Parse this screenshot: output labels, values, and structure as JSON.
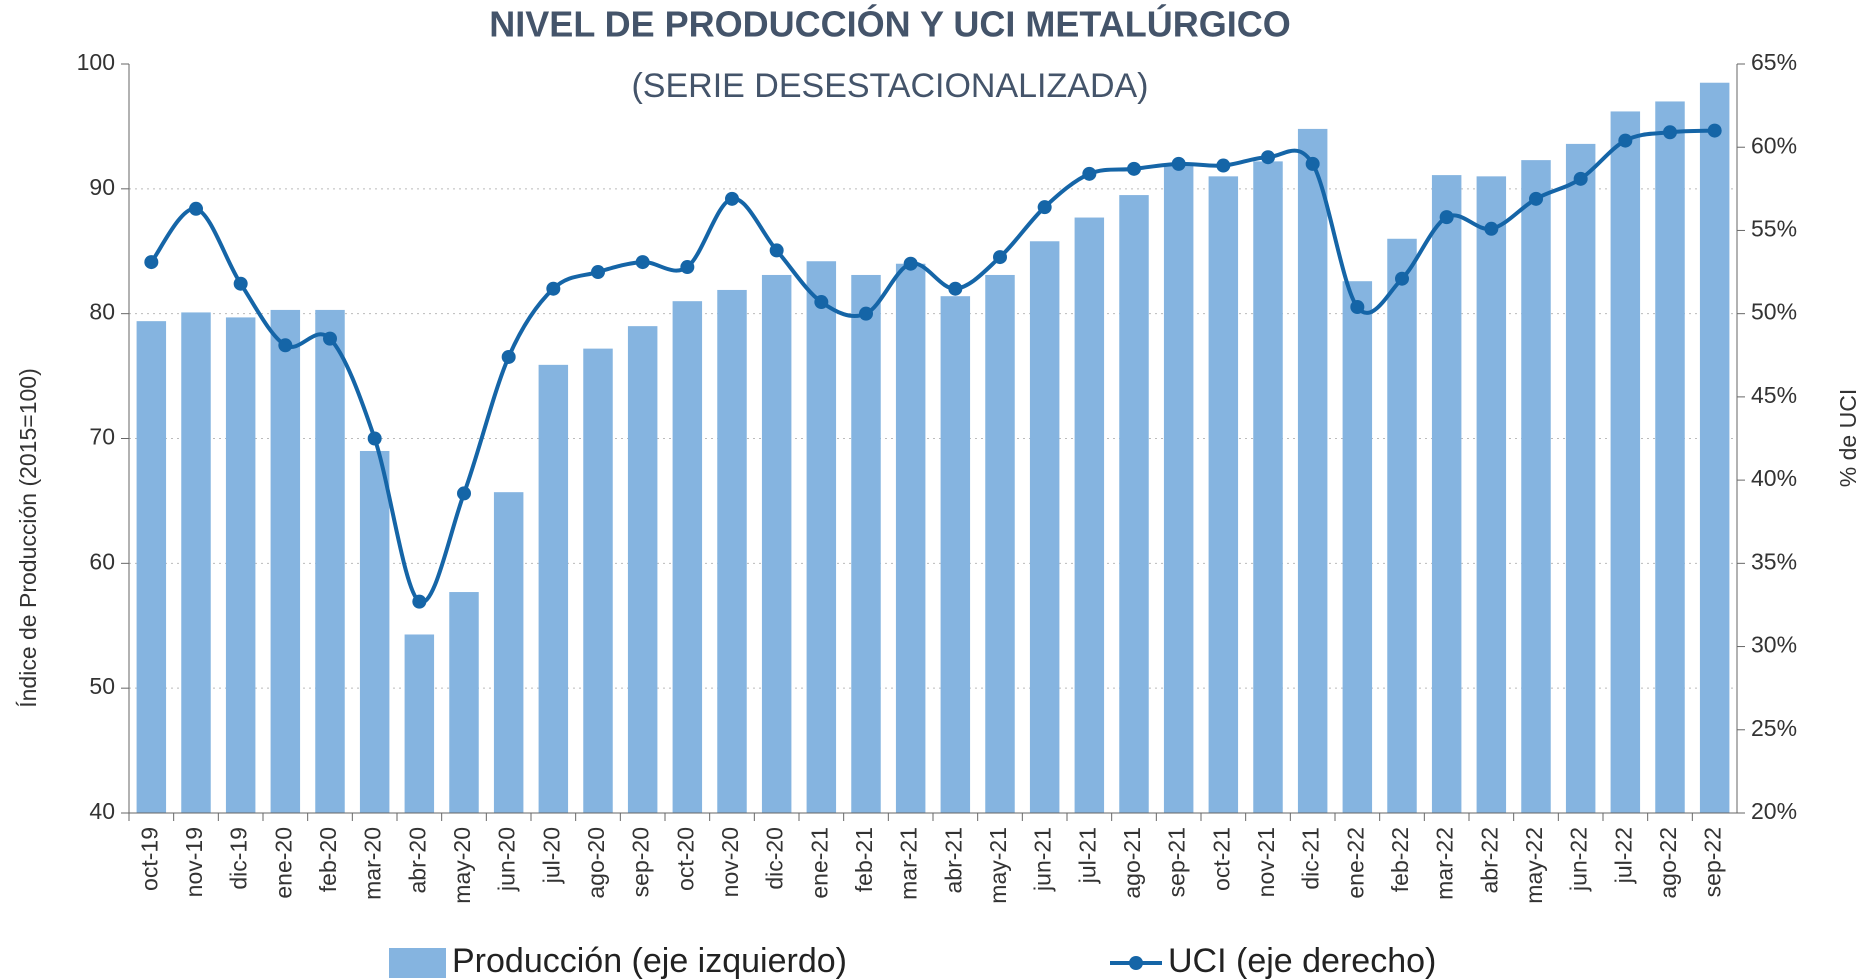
{
  "chart_data": {
    "type": "bar-line",
    "title": "NIVEL DE PRODUCCIÓN Y UCI METALÚRGICO",
    "subtitle": "(SERIE DESESTACIONALIZADA)",
    "y_label": "Índice de Producción (2015=100)",
    "y2_label": "% de UCI",
    "grid": true,
    "categories": [
      "oct-19",
      "nov-19",
      "dic-19",
      "ene-20",
      "feb-20",
      "mar-20",
      "abr-20",
      "may-20",
      "jun-20",
      "jul-20",
      "ago-20",
      "sep-20",
      "oct-20",
      "nov-20",
      "dic-20",
      "ene-21",
      "feb-21",
      "mar-21",
      "abr-21",
      "may-21",
      "jun-21",
      "jul-21",
      "ago-21",
      "sep-21",
      "oct-21",
      "nov-21",
      "dic-21",
      "ene-22",
      "feb-22",
      "mar-22",
      "abr-22",
      "may-22",
      "jun-22",
      "jul-22",
      "ago-22",
      "sep-22"
    ],
    "series": [
      {
        "name": "Producción (eje izquierdo)",
        "color": "#85b4e0",
        "type": "bar",
        "values": [
          79.4,
          80.1,
          79.7,
          80.3,
          80.3,
          69.0,
          54.3,
          57.7,
          65.7,
          75.9,
          77.2,
          79.0,
          81.0,
          81.9,
          83.1,
          84.2,
          83.1,
          84.0,
          81.4,
          83.1,
          85.8,
          87.7,
          89.5,
          92.0,
          91.0,
          92.2,
          94.8,
          82.6,
          86.0,
          91.1,
          91.0,
          92.3,
          93.6,
          96.2,
          97.0,
          98.5
        ]
      },
      {
        "name": "UCI (eje derecho)",
        "color": "#1565a7",
        "type": "line",
        "axis": "y2",
        "values": [
          53.1,
          56.3,
          51.8,
          48.1,
          48.5,
          42.5,
          32.7,
          39.2,
          47.4,
          51.5,
          52.5,
          53.1,
          52.8,
          56.9,
          53.8,
          50.7,
          50.0,
          53.0,
          51.5,
          53.4,
          56.4,
          58.4,
          58.7,
          59.0,
          58.9,
          59.4,
          59.0,
          50.4,
          52.1,
          55.8,
          55.1,
          56.9,
          58.1,
          60.4,
          60.9,
          61.0
        ]
      }
    ],
    "ylim": [
      40,
      100
    ],
    "yticks": [
      40,
      50,
      60,
      70,
      80,
      90,
      100
    ],
    "y2lim": [
      20,
      65
    ],
    "y2ticks": [
      {
        "value": 20,
        "label": "20%"
      },
      {
        "value": 25,
        "label": "25%"
      },
      {
        "value": 30,
        "label": "30%"
      },
      {
        "value": 35,
        "label": "35%"
      },
      {
        "value": 40,
        "label": "40%"
      },
      {
        "value": 45,
        "label": "45%"
      },
      {
        "value": 50,
        "label": "50%"
      },
      {
        "value": 55,
        "label": "55%"
      },
      {
        "value": 60,
        "label": "60%"
      },
      {
        "value": 65,
        "label": "65%"
      }
    ]
  }
}
